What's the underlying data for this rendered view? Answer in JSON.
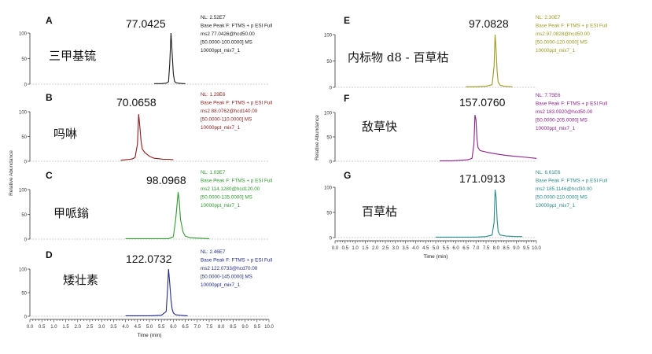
{
  "colors": {
    "A": "#1a1a1a",
    "B": "#8b1a1a",
    "C": "#2e9a2e",
    "D": "#1f2a8c",
    "E": "#9a9a1e",
    "F": "#8b1f8b",
    "G": "#2a8a8a"
  },
  "axes": {
    "left_ylabel": "Relative Abundance",
    "right_ylabel": "Relative Abundance",
    "left_xlabel": "Time (min)",
    "right_xlabel": "Time (min)",
    "left_xticks": [
      "0.0",
      "0.5",
      "1.0",
      "1.5",
      "2.0",
      "2.5",
      "3.0",
      "3.5",
      "4.0",
      "4.5",
      "5.0",
      "5.5",
      "6.0",
      "6.5",
      "7.0",
      "7.5",
      "8.0",
      "8.5",
      "9.0",
      "9.5",
      "10.0"
    ],
    "right_xticks": [
      "0.0",
      "0.5",
      "1.0",
      "1.5",
      "2.0",
      "2.5",
      "3.0",
      "3.5",
      "4.0",
      "4.5",
      "5.0",
      "5.5",
      "6.0",
      "6.5",
      "7.0",
      "7.5",
      "8.0",
      "8.5",
      "9.0",
      "9.5",
      "10.0"
    ]
  },
  "chart_data": [
    {
      "type": "line",
      "panel": "A",
      "compound": "三甲基锍",
      "peak_mass": "77.0425",
      "info": [
        "NL: 2.52E7",
        "Base Peak F: FTMS + p ESI Full",
        "ms2 77.0426@hcd50.00",
        "[50.0000-100.0000]  MS",
        "10000ppt_mix7_1"
      ],
      "xlim": [
        0,
        10
      ],
      "ylim": [
        0,
        100
      ],
      "yticks": [
        0,
        50,
        100
      ],
      "range": [
        5.2,
        6.5
      ],
      "series": [
        {
          "x": [
            5.2,
            5.5,
            5.7,
            5.8,
            5.85,
            5.9,
            5.95,
            6.0,
            6.05,
            6.1,
            6.2,
            6.4,
            6.5
          ],
          "y": [
            1,
            1,
            2,
            5,
            40,
            100,
            60,
            20,
            6,
            3,
            2,
            1,
            1
          ]
        }
      ]
    },
    {
      "type": "line",
      "panel": "B",
      "compound": "吗啉",
      "peak_mass": "70.0658",
      "info": [
        "NL: 1.29E6",
        "Base Peak F: FTMS + p ESI Full",
        "ms2 88.0762@hcd140.00",
        "[50.0000-110.0000]  MS",
        "10000ppt_mix7_1"
      ],
      "xlim": [
        0,
        10
      ],
      "ylim": [
        0,
        100
      ],
      "yticks": [
        0,
        50,
        100
      ],
      "range": [
        3.8,
        6.0
      ],
      "series": [
        {
          "x": [
            3.8,
            4.0,
            4.2,
            4.3,
            4.4,
            4.5,
            4.55,
            4.6,
            4.65,
            4.7,
            4.8,
            4.9,
            5.0,
            5.1,
            5.2,
            5.4,
            5.6,
            5.8,
            6.0
          ],
          "y": [
            2,
            3,
            4,
            5,
            8,
            35,
            95,
            70,
            40,
            25,
            18,
            14,
            10,
            8,
            6,
            5,
            4,
            4,
            3
          ]
        }
      ]
    },
    {
      "type": "line",
      "panel": "C",
      "compound": "甲哌鎓",
      "peak_mass": "98.0968",
      "info": [
        "NL: 1.03E7",
        "Base Peak F: FTMS + p ESI Full",
        "ms2 114.1280@hcd120.00",
        "[50.0000-135.0000]  MS",
        "10000ppt_mix7_1"
      ],
      "xlim": [
        0,
        10
      ],
      "ylim": [
        0,
        100
      ],
      "yticks": [
        0,
        50,
        100
      ],
      "range": [
        4.0,
        7.5
      ],
      "series": [
        {
          "x": [
            4.0,
            5.0,
            5.8,
            6.0,
            6.1,
            6.2,
            6.25,
            6.3,
            6.4,
            6.5,
            6.7,
            7.0,
            7.5
          ],
          "y": [
            1,
            1,
            1,
            5,
            40,
            95,
            75,
            40,
            15,
            6,
            3,
            2,
            1
          ]
        }
      ]
    },
    {
      "type": "line",
      "panel": "D",
      "compound": "矮壮素",
      "peak_mass": "122.0732",
      "info": [
        "NL: 2.46E7",
        "Base Peak F: FTMS + p ESI Full",
        "ms2 122.0733@hcd70.00",
        "[50.0000-145.0000]  MS",
        "10000ppt_mix7_1"
      ],
      "xlim": [
        0,
        10
      ],
      "ylim": [
        0,
        100
      ],
      "yticks": [
        0,
        50,
        100
      ],
      "range": [
        4.0,
        6.6
      ],
      "series": [
        {
          "x": [
            4.0,
            5.0,
            5.5,
            5.7,
            5.75,
            5.8,
            5.85,
            5.9,
            5.95,
            6.0,
            6.1,
            6.3,
            6.6
          ],
          "y": [
            1,
            1,
            2,
            10,
            50,
            100,
            70,
            35,
            15,
            7,
            3,
            2,
            1
          ]
        }
      ]
    },
    {
      "type": "line",
      "panel": "E",
      "compound": "内标物 d8 - 百草枯",
      "peak_mass": "97.0828",
      "info": [
        "NL: 2.30E7",
        "Base Peak F: FTMS + p ESI Full",
        "ms2 97.0828@hcd50.00",
        "[50.0000-120.0000]  MS",
        "10000ppt_mix7_1"
      ],
      "xlim": [
        0,
        10
      ],
      "ylim": [
        0,
        100
      ],
      "yticks": [
        0,
        50,
        100
      ],
      "range": [
        6.5,
        8.8
      ],
      "series": [
        {
          "x": [
            6.5,
            7.0,
            7.5,
            7.8,
            7.9,
            7.95,
            8.0,
            8.05,
            8.1,
            8.2,
            8.4,
            8.8
          ],
          "y": [
            1,
            1,
            2,
            5,
            40,
            100,
            70,
            30,
            10,
            4,
            2,
            1
          ]
        }
      ]
    },
    {
      "type": "line",
      "panel": "F",
      "compound": "敌草快",
      "peak_mass": "157.0760",
      "info": [
        "NL: 7.75E6",
        "Base Peak F: FTMS + p ESI Full",
        "ms2 183.0920@hcd50.00",
        "[50.0000-205.0000]  MS",
        "10000ppt_mix7_1"
      ],
      "xlim": [
        0,
        10
      ],
      "ylim": [
        0,
        100
      ],
      "yticks": [
        0,
        50,
        100
      ],
      "range": [
        5.2,
        10.0
      ],
      "series": [
        {
          "x": [
            5.2,
            5.8,
            6.2,
            6.6,
            6.8,
            6.9,
            6.95,
            7.0,
            7.05,
            7.1,
            7.2,
            7.4,
            7.6,
            8.0,
            8.5,
            9.0,
            9.5,
            10.0
          ],
          "y": [
            1,
            1,
            2,
            3,
            6,
            35,
            95,
            85,
            45,
            28,
            22,
            20,
            18,
            15,
            12,
            10,
            8,
            6
          ]
        }
      ]
    },
    {
      "type": "line",
      "panel": "G",
      "compound": "百草枯",
      "peak_mass": "171.0913",
      "info": [
        "NL: 6.61E6",
        "Base Peak F: FTMS + p ESI Full",
        "ms2 185.1146@hcd30.00",
        "[50.0000-210.0000]  MS",
        "10000ppt_mix7_1"
      ],
      "xlim": [
        0,
        10
      ],
      "ylim": [
        0,
        100
      ],
      "yticks": [
        0,
        50,
        100
      ],
      "range": [
        5.0,
        9.3
      ],
      "series": [
        {
          "x": [
            5.0,
            6.0,
            7.0,
            7.5,
            7.8,
            7.9,
            7.95,
            8.0,
            8.05,
            8.1,
            8.2,
            8.5,
            9.0,
            9.3
          ],
          "y": [
            1,
            1,
            1,
            2,
            5,
            30,
            95,
            80,
            35,
            12,
            5,
            3,
            2,
            2
          ]
        }
      ]
    }
  ]
}
